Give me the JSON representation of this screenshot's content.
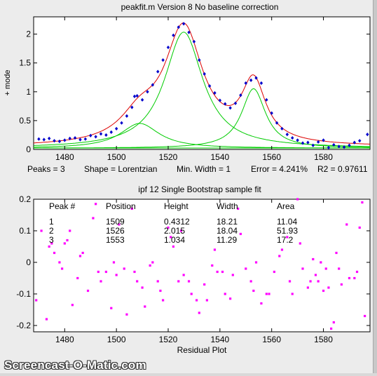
{
  "watermark": "Screencast-O-Matic.com",
  "colors": {
    "background": "#ececec",
    "axes_bg": "#ffffff",
    "data_points": "#0000cc",
    "fit_line": "#dd0000",
    "components": "#00cc00",
    "residuals": "#ff00ff"
  },
  "status": {
    "peaks": "Peaks = 3",
    "shape": "Shape = Lorentzian",
    "min_width": "Min. Width = 1",
    "error": "Error = 4.241%",
    "r2": "R2 = 0.97611"
  },
  "table": {
    "headers": [
      "Peak #",
      "Position",
      "Height",
      "Width",
      "Area"
    ],
    "rows": [
      [
        "1",
        "1509",
        "0.4312",
        "18.21",
        "11.04"
      ],
      [
        "2",
        "1526",
        "2.015",
        "18.04",
        "51.93"
      ],
      [
        "3",
        "1553",
        "1.034",
        "11.29",
        "17.2"
      ]
    ]
  },
  "chart_data": [
    {
      "type": "scatter",
      "title": "peakfit.m Version 8   No baseline correction",
      "ylabel": "+ mode",
      "xlim": [
        1468,
        1598
      ],
      "ylim": [
        0,
        2.3
      ],
      "x_ticks": [
        1480,
        1500,
        1520,
        1540,
        1560,
        1580
      ],
      "y_ticks": [
        0,
        0.5,
        1,
        1.5,
        2
      ],
      "y_tick_labels": [
        "0",
        "0.5",
        "1",
        "1.5",
        "2"
      ],
      "baseline": 0.04,
      "peaks": [
        {
          "position": 1509,
          "height": 0.4312,
          "width": 18.21
        },
        {
          "position": 1526,
          "height": 2.015,
          "width": 18.04
        },
        {
          "position": 1553,
          "height": 1.034,
          "width": 11.29
        }
      ],
      "series": [
        {
          "kind": "data",
          "marker": "diamond",
          "points": [
            [
              1470,
              0.18
            ],
            [
              1472,
              0.17
            ],
            [
              1474,
              0.19
            ],
            [
              1476,
              0.15
            ],
            [
              1478,
              0.14
            ],
            [
              1480,
              0.16
            ],
            [
              1482,
              0.19
            ],
            [
              1484,
              0.2
            ],
            [
              1486,
              0.17
            ],
            [
              1488,
              0.18
            ],
            [
              1490,
              0.24
            ],
            [
              1492,
              0.22
            ],
            [
              1494,
              0.27
            ],
            [
              1496,
              0.25
            ],
            [
              1498,
              0.3
            ],
            [
              1500,
              0.36
            ],
            [
              1502,
              0.46
            ],
            [
              1504,
              0.58
            ],
            [
              1506,
              0.73
            ],
            [
              1507,
              0.92
            ],
            [
              1508,
              0.93
            ],
            [
              1510,
              0.86
            ],
            [
              1512,
              1.0
            ],
            [
              1514,
              1.12
            ],
            [
              1516,
              1.35
            ],
            [
              1518,
              1.55
            ],
            [
              1520,
              1.77
            ],
            [
              1522,
              1.98
            ],
            [
              1524,
              2.12
            ],
            [
              1526,
              2.18
            ],
            [
              1528,
              2.03
            ],
            [
              1530,
              1.87
            ],
            [
              1532,
              1.55
            ],
            [
              1534,
              1.31
            ],
            [
              1536,
              1.1
            ],
            [
              1538,
              0.98
            ],
            [
              1540,
              0.85
            ],
            [
              1542,
              0.79
            ],
            [
              1544,
              0.72
            ],
            [
              1546,
              0.8
            ],
            [
              1548,
              0.94
            ],
            [
              1550,
              1.15
            ],
            [
              1552,
              1.2
            ],
            [
              1554,
              1.24
            ],
            [
              1556,
              1.15
            ],
            [
              1558,
              0.86
            ],
            [
              1560,
              0.63
            ],
            [
              1562,
              0.46
            ],
            [
              1564,
              0.36
            ],
            [
              1566,
              0.26
            ],
            [
              1568,
              0.2
            ],
            [
              1570,
              0.16
            ],
            [
              1572,
              0.11
            ],
            [
              1574,
              0.12
            ],
            [
              1576,
              0.07
            ],
            [
              1578,
              0.13
            ],
            [
              1580,
              0.16
            ],
            [
              1582,
              0.03
            ],
            [
              1584,
              0.08
            ],
            [
              1586,
              0.05
            ],
            [
              1588,
              0.04
            ],
            [
              1590,
              0.07
            ],
            [
              1592,
              0.12
            ],
            [
              1594,
              0.15
            ],
            [
              1597,
              0.26
            ]
          ]
        },
        {
          "kind": "fit_total"
        },
        {
          "kind": "components"
        }
      ]
    },
    {
      "type": "scatter",
      "title": "ipf 12  Single Bootstrap sample fit",
      "xlabel": "Residual Plot",
      "xlim": [
        1468,
        1598
      ],
      "ylim": [
        -0.22,
        0.2
      ],
      "x_ticks": [
        1480,
        1500,
        1520,
        1540,
        1560,
        1580
      ],
      "y_ticks": [
        -0.2,
        -0.1,
        0,
        0.1,
        0.2
      ],
      "y_tick_labels": [
        "-0.2",
        "-0.1",
        "0",
        "0.1",
        "0.2"
      ],
      "series": [
        {
          "kind": "residuals",
          "marker": "dot",
          "points": [
            [
              1469,
              -0.12
            ],
            [
              1471,
              0.1
            ],
            [
              1473,
              -0.18
            ],
            [
              1474,
              0.05
            ],
            [
              1475,
              0.06
            ],
            [
              1476,
              0.03
            ],
            [
              1478,
              0.0
            ],
            [
              1479,
              -0.02
            ],
            [
              1480,
              0.06
            ],
            [
              1481,
              0.07
            ],
            [
              1482,
              0.1
            ],
            [
              1483,
              -0.135
            ],
            [
              1485,
              -0.05
            ],
            [
              1486,
              0.02
            ],
            [
              1487,
              0.03
            ],
            [
              1489,
              -0.09
            ],
            [
              1491,
              0.14
            ],
            [
              1492,
              0.185
            ],
            [
              1493,
              -0.03
            ],
            [
              1494,
              -0.06
            ],
            [
              1496,
              -0.03
            ],
            [
              1498,
              -0.145
            ],
            [
              1499,
              0.0
            ],
            [
              1500,
              -0.04
            ],
            [
              1501,
              0.12
            ],
            [
              1503,
              -0.02
            ],
            [
              1504,
              -0.165
            ],
            [
              1506,
              0.17
            ],
            [
              1507,
              -0.03
            ],
            [
              1508,
              -0.06
            ],
            [
              1510,
              -0.08
            ],
            [
              1511,
              -0.14
            ],
            [
              1513,
              -0.01
            ],
            [
              1514,
              0.0
            ],
            [
              1516,
              -0.06
            ],
            [
              1517,
              -0.09
            ],
            [
              1518,
              -0.12
            ],
            [
              1520,
              0.11
            ],
            [
              1521,
              0.08
            ],
            [
              1522,
              0.05
            ],
            [
              1524,
              -0.06
            ],
            [
              1525,
              0.1
            ],
            [
              1526,
              -0.04
            ],
            [
              1528,
              -0.06
            ],
            [
              1529,
              -0.1
            ],
            [
              1531,
              -0.12
            ],
            [
              1532,
              -0.16
            ],
            [
              1534,
              -0.07
            ],
            [
              1535,
              -0.12
            ],
            [
              1537,
              -0.01
            ],
            [
              1538,
              0.04
            ],
            [
              1539,
              -0.03
            ],
            [
              1541,
              -0.03
            ],
            [
              1542,
              -0.1
            ],
            [
              1544,
              -0.115
            ],
            [
              1545,
              -0.04
            ],
            [
              1547,
              0.17
            ],
            [
              1548,
              0.09
            ],
            [
              1550,
              -0.02
            ],
            [
              1552,
              -0.06
            ],
            [
              1553,
              -0.09
            ],
            [
              1554,
              0.0
            ],
            [
              1556,
              -0.13
            ],
            [
              1558,
              -0.1
            ],
            [
              1559,
              -0.1
            ],
            [
              1561,
              -0.03
            ],
            [
              1563,
              0.02
            ],
            [
              1564,
              0.04
            ],
            [
              1566,
              0.08
            ],
            [
              1567,
              -0.06
            ],
            [
              1568,
              -0.1
            ],
            [
              1570,
              0.2
            ],
            [
              1571,
              0.06
            ],
            [
              1572,
              -0.02
            ],
            [
              1574,
              -0.08
            ],
            [
              1575,
              -0.06
            ],
            [
              1576,
              0.01
            ],
            [
              1577,
              -0.04
            ],
            [
              1578,
              -0.06
            ],
            [
              1579,
              0.0
            ],
            [
              1580,
              -0.09
            ],
            [
              1581,
              -0.02
            ],
            [
              1582,
              -0.08
            ],
            [
              1583,
              -0.21
            ],
            [
              1584,
              -0.19
            ],
            [
              1585,
              0.03
            ],
            [
              1586,
              -0.02
            ],
            [
              1587,
              -0.07
            ],
            [
              1589,
              0.12
            ],
            [
              1590,
              -0.05
            ],
            [
              1592,
              -0.05
            ],
            [
              1593,
              -0.03
            ],
            [
              1594,
              0.11
            ],
            [
              1595,
              0.19
            ],
            [
              1596,
              -0.17
            ]
          ]
        }
      ]
    }
  ]
}
